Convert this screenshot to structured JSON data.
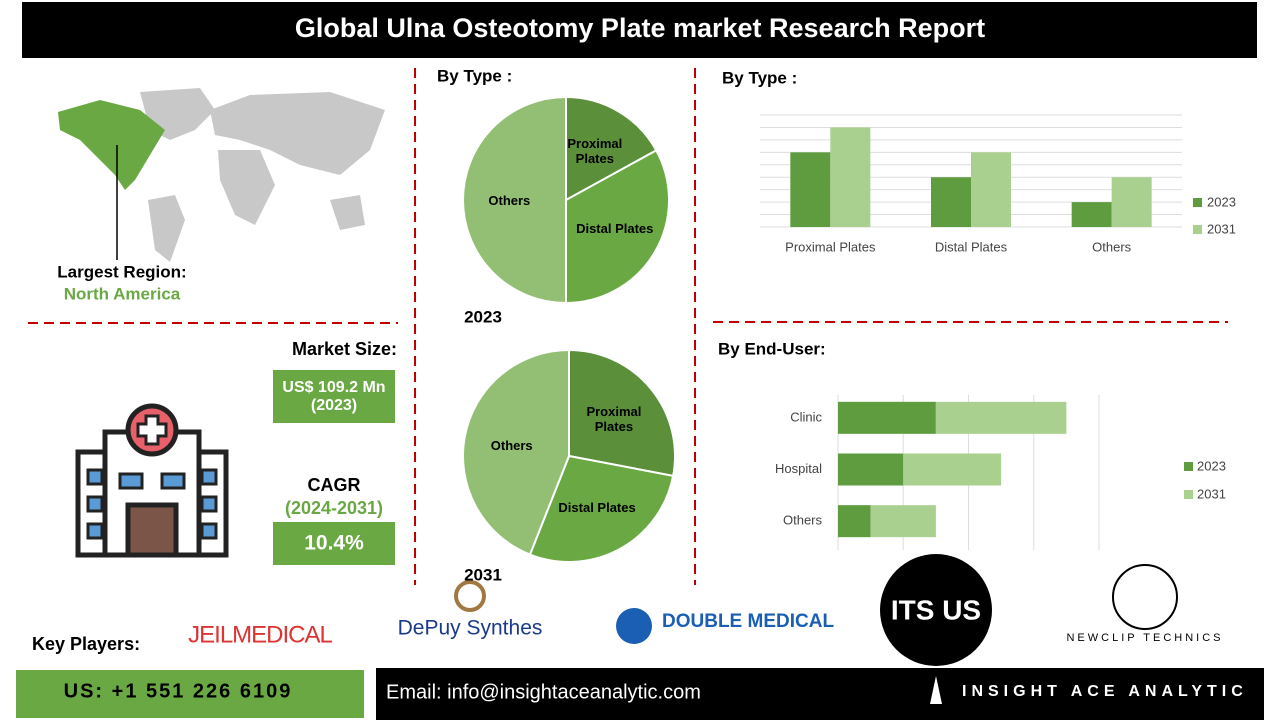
{
  "header": {
    "title": "Global Ulna Osteotomy Plate market Research Report"
  },
  "region": {
    "label": "Largest Region:",
    "value": "North America"
  },
  "market": {
    "size_label": "Market Size:",
    "size_value": "US$ 109.2 Mn (2023)",
    "cagr_label": "CAGR",
    "cagr_period": "(2024-2031)",
    "cagr_value": "10.4%"
  },
  "chart_data": [
    {
      "type": "pie",
      "title": "By Type :",
      "subtitle": "2023",
      "categories": [
        "Proximal Plates",
        "Distal Plates",
        "Others"
      ],
      "values": [
        17,
        33,
        50
      ],
      "colors": [
        "#5b8f3a",
        "#6aa844",
        "#93bf75"
      ]
    },
    {
      "type": "pie",
      "subtitle": "2031",
      "categories": [
        "Proximal Plates",
        "Distal Plates",
        "Others"
      ],
      "values": [
        28,
        28,
        44
      ],
      "colors": [
        "#5b8f3a",
        "#6aa844",
        "#93bf75"
      ]
    },
    {
      "type": "bar",
      "title": "By  Type :",
      "categories": [
        "Proximal Plates",
        "Distal Plates",
        "Others"
      ],
      "series": [
        {
          "name": "2023",
          "color": "#5e9c3f",
          "values": [
            6,
            4,
            2
          ]
        },
        {
          "name": "2031",
          "color": "#a9d08e",
          "values": [
            8,
            6,
            4
          ]
        }
      ],
      "ylim": [
        0,
        9
      ],
      "grid": true
    },
    {
      "type": "hbar",
      "title": "By End-User:",
      "categories": [
        "Clinic",
        "Hospital",
        "Others"
      ],
      "series": [
        {
          "name": "2023",
          "color": "#5e9c3f",
          "values": [
            1.5,
            1,
            0.5
          ]
        },
        {
          "name": "2031",
          "color": "#a9d08e",
          "values": [
            2,
            1.5,
            1
          ]
        }
      ],
      "xlim": [
        0,
        4
      ],
      "grid": true
    }
  ],
  "key_players": {
    "label": "Key Players:",
    "companies": [
      "JEILMEDICAL",
      "DePuy Synthes",
      "DOUBLE MEDICAL",
      "ITS US",
      "NEWCLIP TECHNICS"
    ]
  },
  "footer": {
    "phone": "US: +1 551 226 6109",
    "email": "Email: info@insightaceanalytic.com",
    "brand": "INSIGHT ACE ANALYTIC"
  }
}
